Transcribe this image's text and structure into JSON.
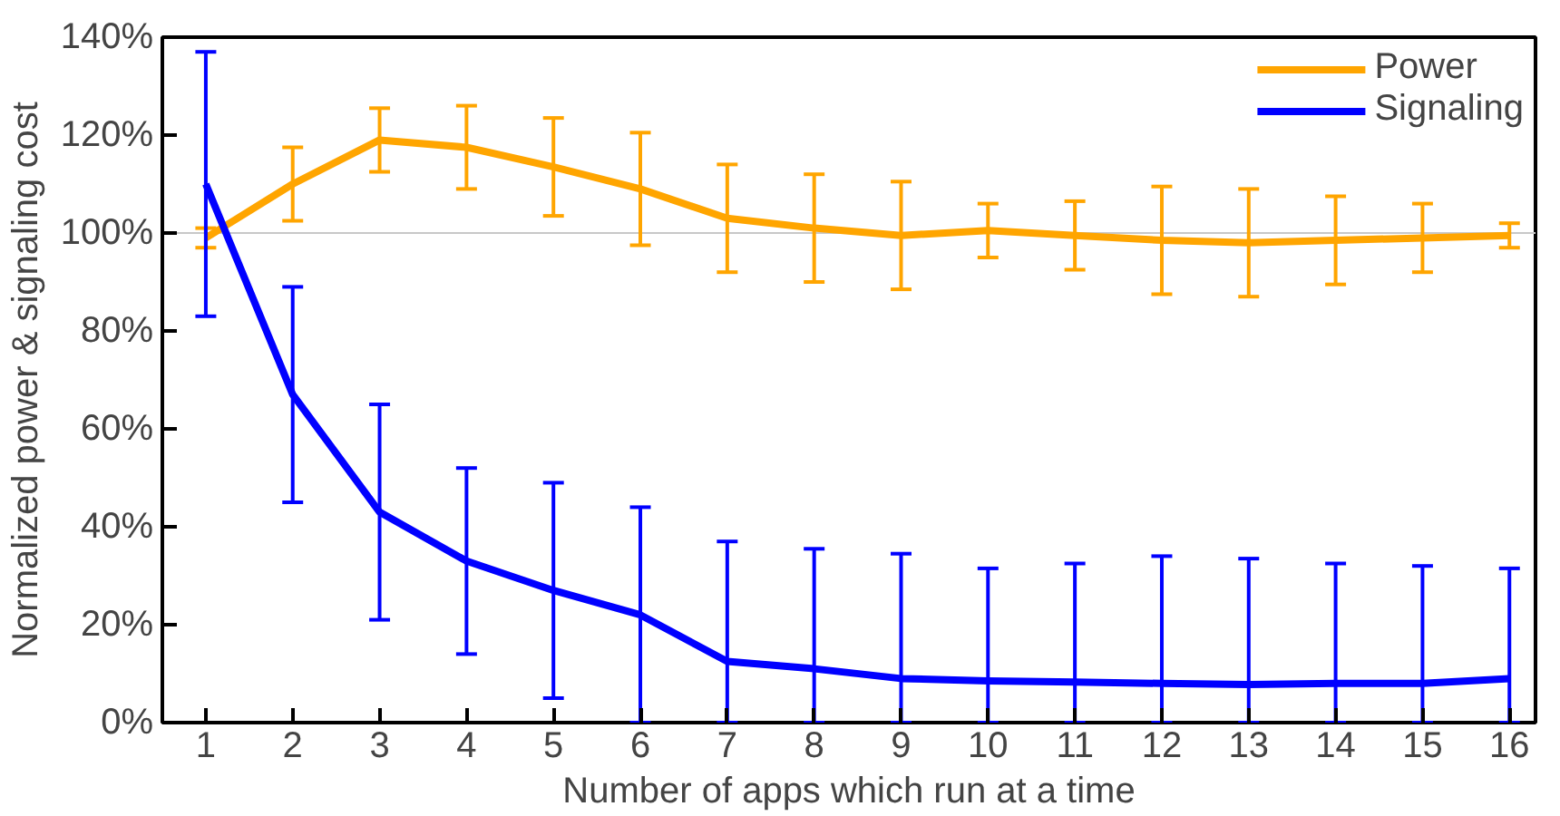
{
  "chart_data": {
    "type": "line",
    "xlabel": "Number of apps which run at a time",
    "ylabel": "Normalized power & signaling cost",
    "x": [
      1,
      2,
      3,
      4,
      5,
      6,
      7,
      8,
      9,
      10,
      11,
      12,
      13,
      14,
      15,
      16
    ],
    "xlim": [
      0.5,
      16.3
    ],
    "xticks": [
      1,
      2,
      3,
      4,
      5,
      6,
      7,
      8,
      9,
      10,
      11,
      12,
      13,
      14,
      15,
      16
    ],
    "ylim": [
      0,
      140
    ],
    "yticks": [
      {
        "value": 0,
        "label": "0%"
      },
      {
        "value": 20,
        "label": "20%"
      },
      {
        "value": 40,
        "label": "40%"
      },
      {
        "value": 60,
        "label": "60%"
      },
      {
        "value": 80,
        "label": "80%"
      },
      {
        "value": 100,
        "label": "100%"
      },
      {
        "value": 120,
        "label": "120%"
      },
      {
        "value": 140,
        "label": "140%"
      }
    ],
    "series": [
      {
        "name": "Power",
        "color": "#ffa500",
        "values": [
          99,
          110,
          119,
          117.5,
          113.5,
          109,
          103,
          101,
          99.5,
          100.5,
          99.5,
          98.5,
          98,
          98.5,
          99,
          99.5
        ],
        "errors": [
          2,
          7.5,
          6.5,
          8.5,
          10,
          11.5,
          11,
          11,
          11,
          5.5,
          7,
          11,
          11,
          9,
          7,
          2.5
        ]
      },
      {
        "name": "Signaling",
        "color": "#0000ff",
        "values": [
          110,
          67,
          43,
          33,
          27,
          22,
          12.5,
          11,
          9,
          8.5,
          8.3,
          8,
          7.8,
          8,
          8,
          9
        ],
        "errors": [
          27,
          22,
          22,
          19,
          22,
          [
            0,
            44
          ],
          [
            0,
            37
          ],
          [
            0,
            35.5
          ],
          [
            0,
            34.5
          ],
          [
            0,
            31.5
          ],
          [
            0,
            32.5
          ],
          [
            0,
            34
          ],
          [
            0,
            33.5
          ],
          [
            0,
            32.5
          ],
          [
            0,
            32
          ],
          [
            0,
            31.5
          ]
        ]
      }
    ],
    "ref_lines": [
      {
        "axis": "y",
        "value": 100,
        "color": "#c8c8c8"
      }
    ],
    "legend": "top right",
    "grid": false,
    "marker": "none",
    "line_style": "solid"
  }
}
